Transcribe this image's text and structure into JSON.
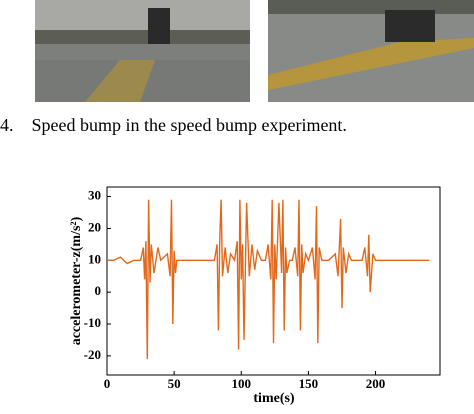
{
  "caption": "4.    Speed bump in the speed bump experiment.",
  "chart_data": {
    "type": "line",
    "xlabel": "time(s)",
    "ylabel": "accelerometer-z(m/s²)",
    "x": [
      0,
      5,
      10,
      15,
      20,
      25,
      27,
      28,
      29,
      30,
      31,
      32,
      33,
      35,
      38,
      40,
      45,
      47,
      48,
      49,
      50,
      51,
      52,
      55,
      60,
      65,
      70,
      75,
      80,
      82,
      83,
      84,
      85,
      86,
      88,
      90,
      92,
      95,
      97,
      98,
      99,
      100,
      101,
      102,
      104,
      106,
      108,
      110,
      112,
      115,
      118,
      120,
      122,
      123,
      124,
      125,
      126,
      128,
      130,
      131,
      132,
      133,
      134,
      136,
      138,
      140,
      142,
      143,
      144,
      145,
      146,
      148,
      150,
      153,
      155,
      156,
      157,
      158,
      160,
      162,
      165,
      170,
      172,
      174,
      175,
      176,
      178,
      180,
      182,
      185,
      190,
      192,
      194,
      195,
      196,
      198,
      200,
      205,
      210,
      220,
      230,
      240
    ],
    "series": [
      {
        "color": "#e2691c",
        "values": [
          10,
          10,
          11,
          9,
          10,
          10,
          14,
          4,
          16,
          -21,
          29,
          3,
          15,
          6,
          14,
          10,
          12,
          5,
          29,
          -10,
          13,
          6,
          10,
          10,
          10,
          10,
          10,
          10,
          10,
          15,
          -12,
          17,
          29,
          5,
          14,
          6,
          12,
          10,
          16,
          -18,
          29,
          4,
          15,
          -15,
          28,
          5,
          15,
          7,
          13,
          10,
          10,
          15,
          4,
          29,
          -16,
          15,
          4,
          28,
          6,
          29,
          -12,
          14,
          6,
          10,
          10,
          14,
          5,
          29,
          -12,
          15,
          6,
          12,
          10,
          14,
          4,
          27,
          -16,
          14,
          10,
          10,
          10,
          12,
          5,
          23,
          -5,
          14,
          6,
          12,
          10,
          10,
          10,
          14,
          5,
          18,
          0,
          12,
          10,
          10,
          10,
          10,
          10,
          10
        ]
      }
    ],
    "xlim": [
      0,
      248
    ],
    "ylim": [
      -26,
      33
    ],
    "xticks": [
      0,
      50,
      100,
      150,
      200
    ],
    "yticks": [
      -20,
      -10,
      0,
      10,
      20,
      30
    ]
  }
}
